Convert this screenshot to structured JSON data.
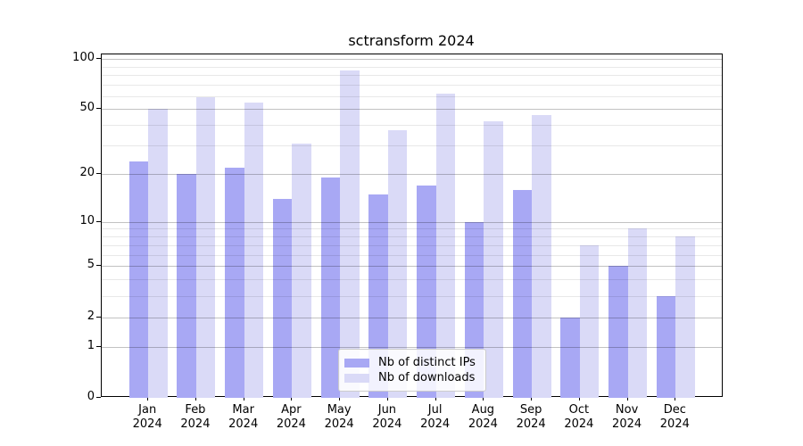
{
  "title": "sctransform 2024",
  "chart_data": {
    "type": "bar",
    "title": "sctransform 2024",
    "categories": [
      "Jan",
      "Feb",
      "Mar",
      "Apr",
      "May",
      "Jun",
      "Jul",
      "Aug",
      "Sep",
      "Oct",
      "Nov",
      "Dec"
    ],
    "category_year": "2024",
    "series": [
      {
        "name": "Nb of distinct IPs",
        "color": "#a8a8f4",
        "values": [
          24,
          20,
          22,
          14,
          19,
          15,
          17,
          10,
          16,
          2,
          5,
          3
        ]
      },
      {
        "name": "Nb of downloads",
        "color": "#dadaf7",
        "values": [
          50,
          59,
          55,
          31,
          85,
          37,
          62,
          42,
          46,
          7,
          9,
          8
        ]
      }
    ],
    "yscale": "log1p",
    "ylim": [
      0,
      106
    ],
    "y_major_ticks": [
      0,
      1,
      2,
      5,
      10,
      20,
      50,
      100
    ],
    "y_minor_ticks": [
      3,
      4,
      6,
      7,
      8,
      9,
      30,
      40,
      60,
      70,
      80,
      90
    ],
    "grid": true,
    "legend_position": "bottom-center"
  }
}
